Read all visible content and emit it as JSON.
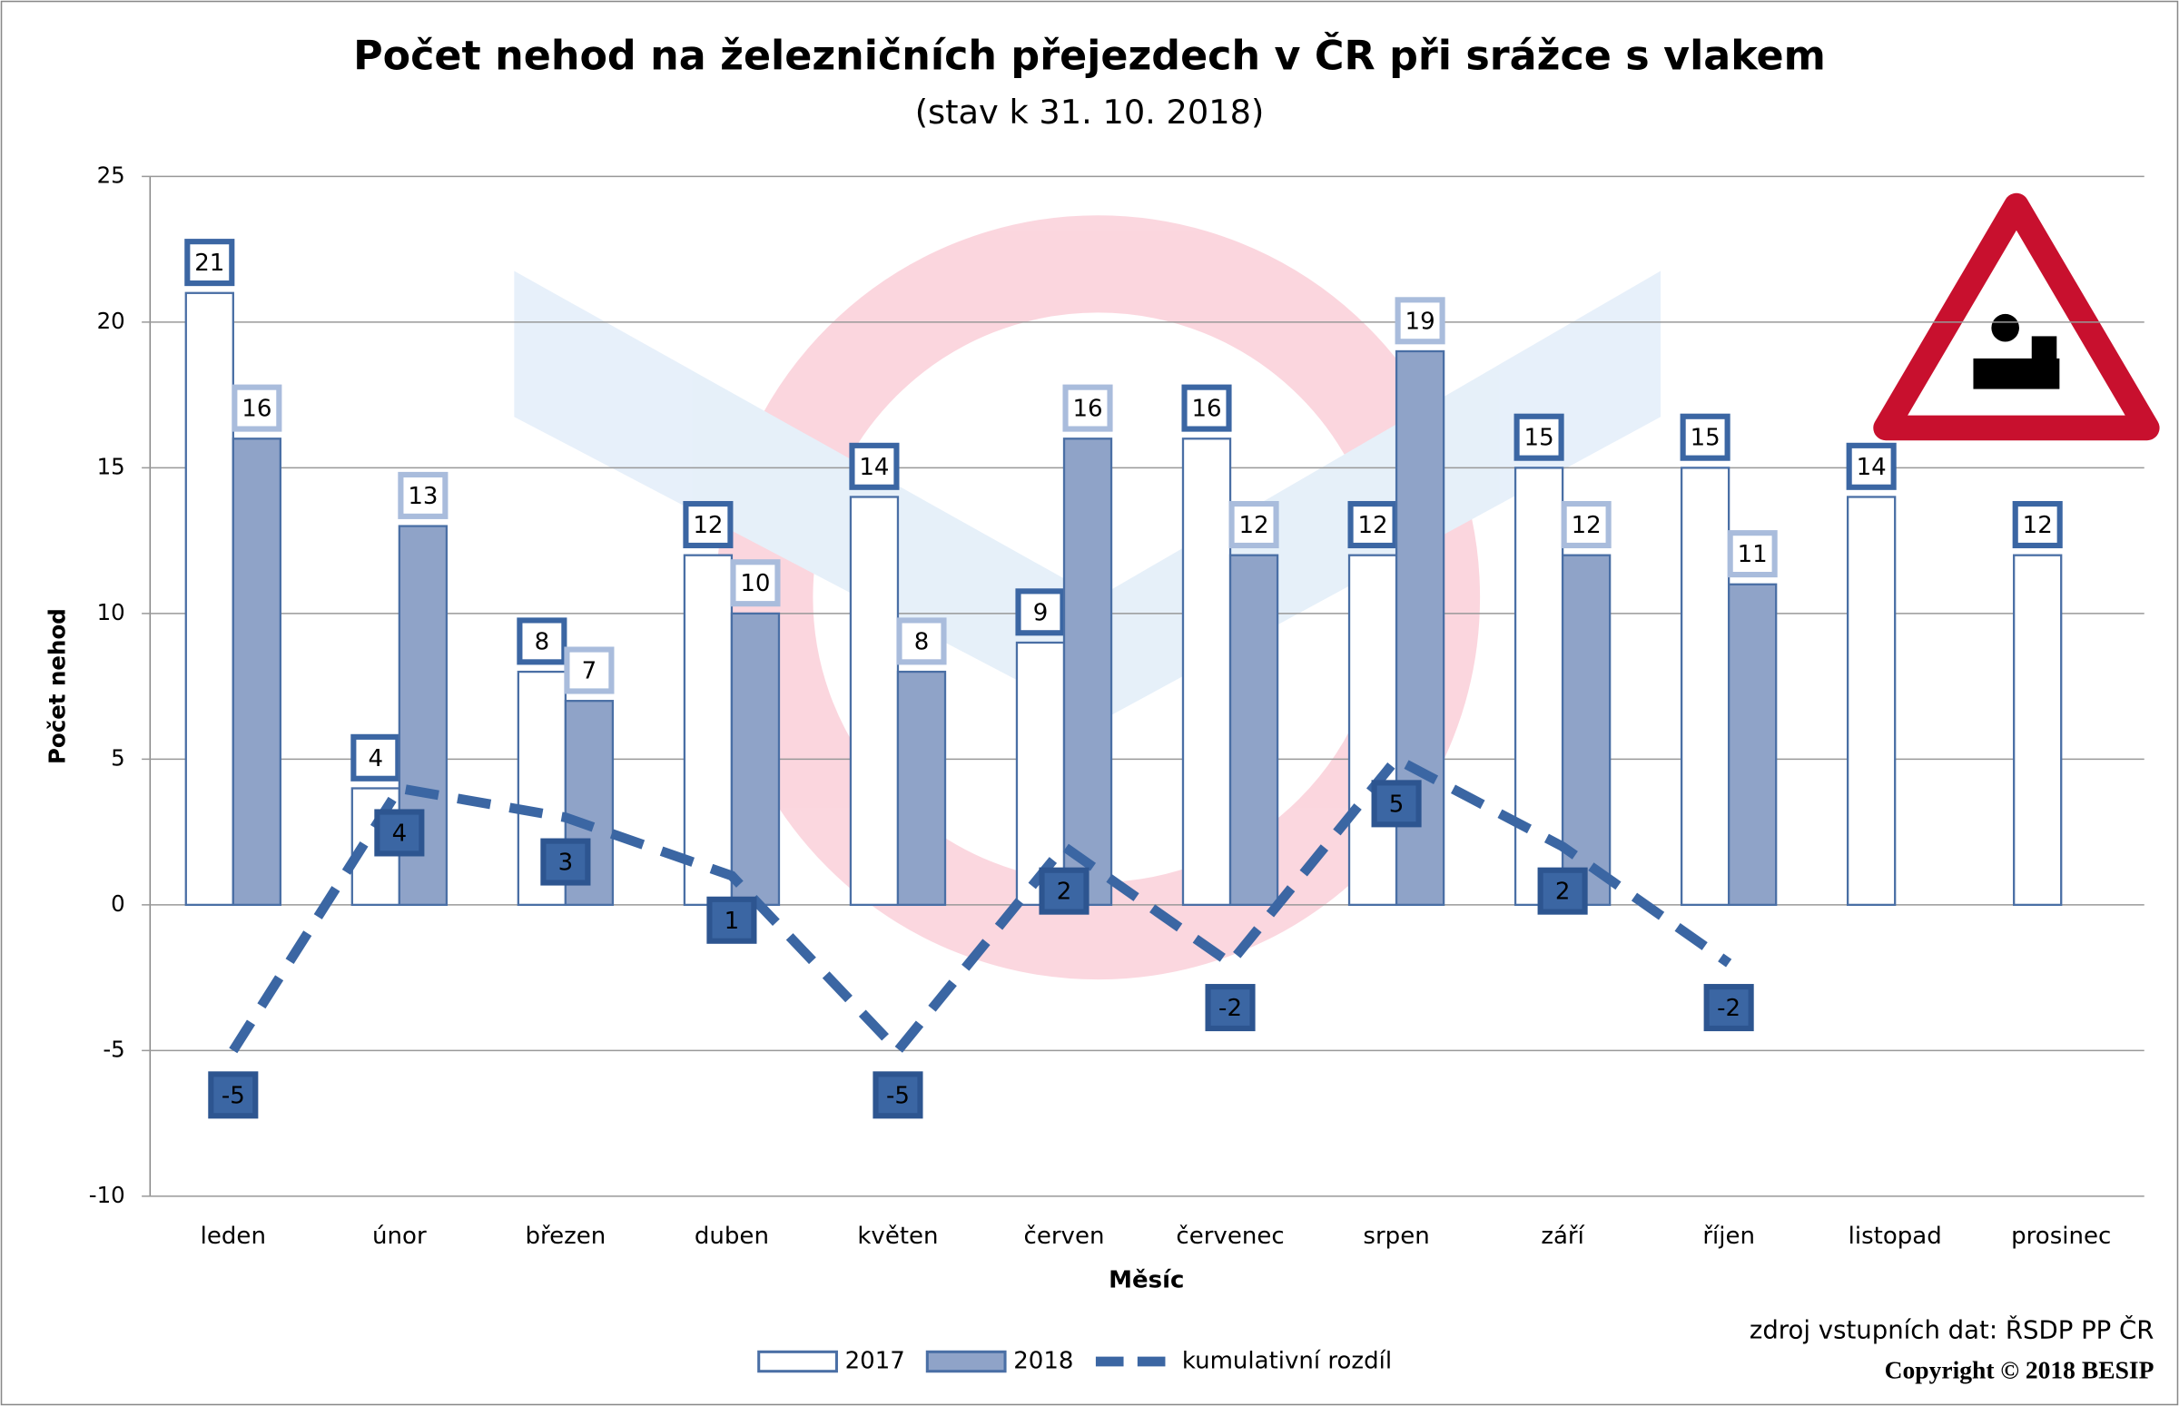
{
  "chart_data": {
    "type": "bar",
    "title": "Počet nehod na železničních přejezdech v ČR při srážce s vlakem",
    "subtitle": "(stav k 31. 10. 2018)",
    "x_label": "Měsíc",
    "y_label": "Počet nehod",
    "categories": [
      "leden",
      "únor",
      "březen",
      "duben",
      "květen",
      "červen",
      "červenec",
      "srpen",
      "září",
      "říjen",
      "listopad",
      "prosinec"
    ],
    "series": [
      {
        "name": "2017",
        "type": "bar",
        "color": "#ffffff",
        "values": [
          21,
          4,
          8,
          12,
          14,
          9,
          16,
          12,
          15,
          15,
          14,
          12
        ]
      },
      {
        "name": "2018",
        "type": "bar",
        "color": "#8fa3c8",
        "values": [
          16,
          13,
          7,
          10,
          8,
          16,
          12,
          19,
          12,
          11,
          null,
          null
        ]
      },
      {
        "name": "kumulativní rozdíl",
        "type": "line",
        "color": "#3b66a3",
        "values": [
          -5,
          4,
          3,
          1,
          -5,
          2,
          -2,
          5,
          2,
          -2,
          null,
          null
        ]
      }
    ],
    "ylim": [
      -10,
      25
    ],
    "yticks": [
      -10,
      -5,
      0,
      5,
      10,
      15,
      20,
      25
    ],
    "grid": true,
    "legend": "bottom",
    "source": "zdroj vstupních dat: ŘSDP PP ČR",
    "copyright": "Copyright © 2018 BESIP"
  }
}
